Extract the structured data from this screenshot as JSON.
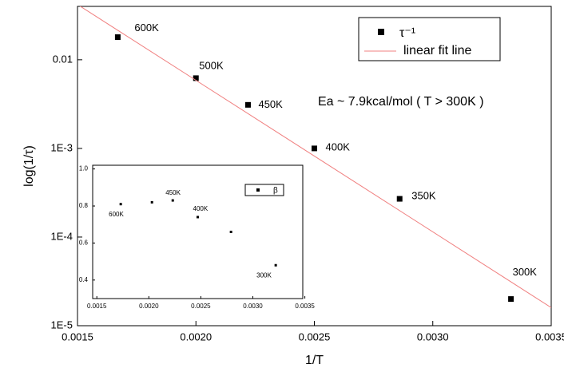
{
  "chart_data": [
    {
      "type": "scatter",
      "x_label": "1/T",
      "y_label": "log(1/τ)",
      "log_y": true,
      "xlim": [
        0.0015,
        0.0035
      ],
      "xticks": [
        0.0015,
        {
          "value": 0.002,
          "label": "0.0020"
        },
        0.0025,
        {
          "value": 0.003,
          "label": "0.0030"
        },
        0.0035
      ],
      "ylim": [
        1e-05,
        0.04
      ],
      "yticks": [
        {
          "value": 1e-05,
          "label": "1E-5"
        },
        {
          "value": 0.0001,
          "label": "1E-4"
        },
        {
          "value": 0.001,
          "label": "1E-3"
        },
        0.01
      ],
      "annotation": "Ea ~ 7.9kcal/mol ( T > 300K )",
      "series": [
        {
          "name": "τ⁻¹",
          "type": "scatter",
          "color": "#000000",
          "x": [
            0.00167,
            0.002,
            0.00222,
            0.0025,
            0.00286,
            0.00333
          ],
          "values": [
            0.018,
            0.0062,
            0.0031,
            0.001,
            0.00027,
            2e-05
          ],
          "point_labels": [
            "600K",
            "500K",
            "450K",
            "400K",
            "350K",
            "300K"
          ]
        },
        {
          "name": "linear fit line",
          "type": "line",
          "color": "#f08080",
          "x": [
            0.0015,
            0.0035
          ],
          "values": [
            0.042,
            1.6e-05
          ]
        }
      ]
    },
    {
      "type": "scatter",
      "xlim": [
        0.00146,
        0.00348
      ],
      "xticks": [
        0.0015,
        {
          "value": 0.002,
          "label": "0.0020"
        },
        0.0025,
        {
          "value": 0.003,
          "label": "0.0030"
        },
        0.0035
      ],
      "ylim": [
        0.3,
        1.02
      ],
      "yticks": [
        0.4,
        0.6,
        0.8,
        {
          "value": 1,
          "label": "1.0"
        }
      ],
      "series": [
        {
          "name": "β",
          "type": "scatter",
          "color": "#000000",
          "x": [
            0.00173,
            0.00203,
            0.00223,
            0.00247,
            0.00279,
            0.00322
          ],
          "values": [
            0.81,
            0.82,
            0.83,
            0.74,
            0.66,
            0.48
          ],
          "point_labels": [
            "600K",
            null,
            "450K",
            "400K",
            null,
            "300K"
          ]
        }
      ]
    }
  ]
}
